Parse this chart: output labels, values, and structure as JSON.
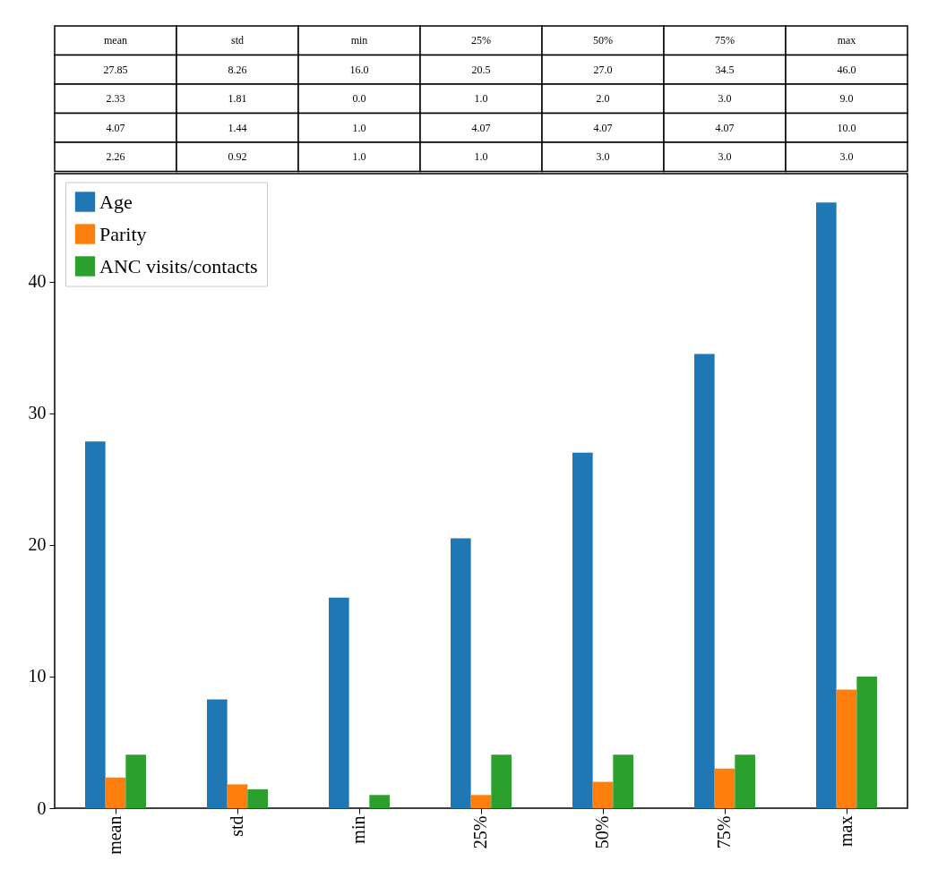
{
  "chart_data": {
    "type": "bar",
    "categories": [
      "mean",
      "std",
      "min",
      "25%",
      "50%",
      "75%",
      "max"
    ],
    "series": [
      {
        "name": "Age",
        "color": "#1f77b4",
        "values": [
          27.85,
          8.26,
          16.0,
          20.5,
          27.0,
          34.5,
          46.0
        ],
        "value_labels": [
          "27.85",
          "8.26",
          "16.0",
          "20.5",
          "27.0",
          "34.5",
          "46.0"
        ]
      },
      {
        "name": "Parity",
        "color": "#ff7f0e",
        "values": [
          2.33,
          1.81,
          0.0,
          1.0,
          2.0,
          3.0,
          9.0
        ],
        "value_labels": [
          "2.33",
          "1.81",
          "0.0",
          "1.0",
          "2.0",
          "3.0",
          "9.0"
        ]
      },
      {
        "name": "ANC visits/contacts",
        "color": "#2ca02c",
        "values": [
          4.07,
          1.44,
          1.0,
          4.07,
          4.07,
          4.07,
          10.0
        ],
        "value_labels": [
          "4.07",
          "1.44",
          "1.0",
          "4.07",
          "4.07",
          "4.07",
          "10.0"
        ]
      }
    ],
    "annotations": [
      "2.26",
      "0.92",
      "1.0",
      "1.0",
      "3.0",
      "3.0",
      "3.0"
    ],
    "ylim": [
      0,
      48.2
    ],
    "yticks": [
      0,
      10,
      20,
      30,
      40
    ],
    "grid": false,
    "legend": "top left"
  }
}
